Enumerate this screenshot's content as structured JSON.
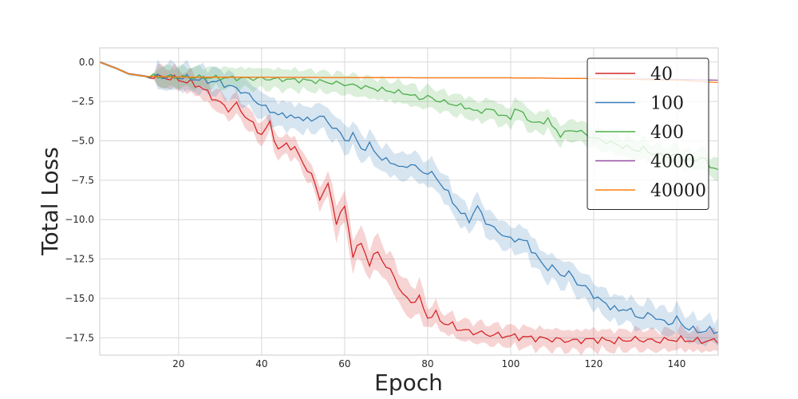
{
  "chart_data": {
    "type": "line",
    "title": "",
    "xlabel": "Epoch",
    "ylabel": "Total Loss",
    "xlim": [
      1,
      150
    ],
    "ylim": [
      -18.6,
      0.9
    ],
    "x_ticks": [
      20,
      40,
      60,
      80,
      100,
      120,
      140
    ],
    "x_tick_labels": [
      "20",
      "40",
      "60",
      "80",
      "100",
      "120",
      "140"
    ],
    "y_ticks": [
      0,
      -2.5,
      -5,
      -7.5,
      -10,
      -12.5,
      -15,
      -17.5
    ],
    "y_tick_labels": [
      "0.0",
      "−2.5",
      "−5.0",
      "−7.5",
      "−10.0",
      "−12.5",
      "−15.0",
      "−17.5"
    ],
    "grid": true,
    "legend_position": "top-right",
    "series": [
      {
        "name": "40",
        "color": "#d62728",
        "shaded_band": true,
        "points": [
          [
            1,
            0
          ],
          [
            5,
            -0.4
          ],
          [
            8,
            -0.75
          ],
          [
            12,
            -0.9
          ],
          [
            16,
            -0.95
          ],
          [
            20,
            -1.1
          ],
          [
            25,
            -1.5
          ],
          [
            28,
            -2.2
          ],
          [
            30,
            -2.6
          ],
          [
            32,
            -3.0
          ],
          [
            34,
            -2.7
          ],
          [
            36,
            -3.4
          ],
          [
            38,
            -4.0
          ],
          [
            40,
            -4.6
          ],
          [
            42,
            -3.9
          ],
          [
            44,
            -5.6
          ],
          [
            46,
            -5.2
          ],
          [
            48,
            -5.5
          ],
          [
            50,
            -6.4
          ],
          [
            52,
            -7.2
          ],
          [
            54,
            -8.6
          ],
          [
            56,
            -7.8
          ],
          [
            58,
            -10.1
          ],
          [
            60,
            -9.2
          ],
          [
            62,
            -12.2
          ],
          [
            64,
            -11.5
          ],
          [
            66,
            -12.8
          ],
          [
            68,
            -12.0
          ],
          [
            70,
            -13.0
          ],
          [
            72,
            -13.6
          ],
          [
            74,
            -14.8
          ],
          [
            76,
            -15.2
          ],
          [
            78,
            -15.0
          ],
          [
            80,
            -16.2
          ],
          [
            82,
            -16.0
          ],
          [
            84,
            -16.6
          ],
          [
            86,
            -16.7
          ],
          [
            88,
            -17.0
          ],
          [
            90,
            -17.1
          ],
          [
            95,
            -17.3
          ],
          [
            100,
            -17.4
          ],
          [
            105,
            -17.5
          ],
          [
            110,
            -17.6
          ],
          [
            115,
            -17.7
          ],
          [
            120,
            -17.6
          ],
          [
            125,
            -17.7
          ],
          [
            130,
            -17.6
          ],
          [
            135,
            -17.7
          ],
          [
            140,
            -17.6
          ],
          [
            145,
            -17.7
          ],
          [
            150,
            -17.7
          ]
        ]
      },
      {
        "name": "100",
        "color": "#377eb8",
        "shaded_band": true,
        "points": [
          [
            1,
            0
          ],
          [
            5,
            -0.4
          ],
          [
            8,
            -0.75
          ],
          [
            12,
            -0.9
          ],
          [
            20,
            -0.95
          ],
          [
            25,
            -1.1
          ],
          [
            30,
            -1.3
          ],
          [
            35,
            -1.8
          ],
          [
            38,
            -2.3
          ],
          [
            40,
            -2.8
          ],
          [
            42,
            -3.0
          ],
          [
            44,
            -3.4
          ],
          [
            46,
            -3.3
          ],
          [
            48,
            -3.6
          ],
          [
            50,
            -3.5
          ],
          [
            52,
            -3.8
          ],
          [
            54,
            -3.3
          ],
          [
            56,
            -3.9
          ],
          [
            58,
            -4.2
          ],
          [
            60,
            -5.0
          ],
          [
            62,
            -4.6
          ],
          [
            64,
            -5.5
          ],
          [
            66,
            -5.3
          ],
          [
            68,
            -5.9
          ],
          [
            70,
            -6.3
          ],
          [
            72,
            -6.4
          ],
          [
            74,
            -6.8
          ],
          [
            76,
            -6.4
          ],
          [
            78,
            -6.9
          ],
          [
            80,
            -7.0
          ],
          [
            82,
            -7.3
          ],
          [
            84,
            -8.0
          ],
          [
            86,
            -8.8
          ],
          [
            88,
            -9.6
          ],
          [
            90,
            -10.0
          ],
          [
            92,
            -9.2
          ],
          [
            94,
            -10.1
          ],
          [
            96,
            -10.6
          ],
          [
            98,
            -10.9
          ],
          [
            100,
            -11.3
          ],
          [
            102,
            -11.2
          ],
          [
            104,
            -11.5
          ],
          [
            106,
            -12.2
          ],
          [
            108,
            -13.0
          ],
          [
            110,
            -13.0
          ],
          [
            112,
            -13.5
          ],
          [
            114,
            -13.4
          ],
          [
            116,
            -14.0
          ],
          [
            118,
            -14.3
          ],
          [
            120,
            -14.8
          ],
          [
            122,
            -15.2
          ],
          [
            124,
            -15.5
          ],
          [
            126,
            -15.8
          ],
          [
            128,
            -15.6
          ],
          [
            130,
            -16.1
          ],
          [
            132,
            -16.2
          ],
          [
            134,
            -16.0
          ],
          [
            136,
            -16.4
          ],
          [
            138,
            -16.6
          ],
          [
            140,
            -16.3
          ],
          [
            142,
            -16.8
          ],
          [
            144,
            -17.0
          ],
          [
            146,
            -17.1
          ],
          [
            148,
            -17.0
          ],
          [
            150,
            -17.1
          ]
        ]
      },
      {
        "name": "400",
        "color": "#4daf4a",
        "shaded_band": true,
        "points": [
          [
            1,
            0
          ],
          [
            5,
            -0.4
          ],
          [
            8,
            -0.75
          ],
          [
            12,
            -0.9
          ],
          [
            20,
            -0.95
          ],
          [
            30,
            -1.0
          ],
          [
            40,
            -1.05
          ],
          [
            50,
            -1.15
          ],
          [
            55,
            -1.25
          ],
          [
            60,
            -1.4
          ],
          [
            65,
            -1.6
          ],
          [
            70,
            -1.8
          ],
          [
            75,
            -2.0
          ],
          [
            78,
            -2.3
          ],
          [
            80,
            -2.2
          ],
          [
            82,
            -2.4
          ],
          [
            85,
            -2.6
          ],
          [
            88,
            -2.8
          ],
          [
            90,
            -2.9
          ],
          [
            92,
            -3.2
          ],
          [
            94,
            -3.0
          ],
          [
            96,
            -3.1
          ],
          [
            98,
            -3.4
          ],
          [
            100,
            -3.6
          ],
          [
            101,
            -2.9
          ],
          [
            103,
            -3.3
          ],
          [
            105,
            -3.8
          ],
          [
            107,
            -3.9
          ],
          [
            109,
            -3.6
          ],
          [
            110,
            -4.1
          ],
          [
            112,
            -4.6
          ],
          [
            114,
            -4.4
          ],
          [
            116,
            -4.3
          ],
          [
            118,
            -4.6
          ],
          [
            120,
            -4.8
          ],
          [
            122,
            -5.0
          ],
          [
            124,
            -5.1
          ],
          [
            126,
            -5.3
          ],
          [
            128,
            -5.4
          ],
          [
            130,
            -5.6
          ],
          [
            132,
            -5.5
          ],
          [
            134,
            -5.8
          ],
          [
            136,
            -5.9
          ],
          [
            138,
            -6.0
          ],
          [
            140,
            -5.9
          ],
          [
            142,
            -6.2
          ],
          [
            144,
            -6.3
          ],
          [
            146,
            -6.0
          ],
          [
            148,
            -6.6
          ],
          [
            150,
            -6.8
          ]
        ]
      },
      {
        "name": "4000",
        "color": "#984ea3",
        "shaded_band": false,
        "points": [
          [
            1,
            0
          ],
          [
            5,
            -0.4
          ],
          [
            8,
            -0.75
          ],
          [
            12,
            -0.9
          ],
          [
            20,
            -0.95
          ],
          [
            40,
            -0.97
          ],
          [
            60,
            -0.98
          ],
          [
            80,
            -1.0
          ],
          [
            100,
            -1.0
          ],
          [
            120,
            -1.05
          ],
          [
            140,
            -1.1
          ],
          [
            150,
            -1.15
          ]
        ]
      },
      {
        "name": "40000",
        "color": "#ff7f0e",
        "shaded_band": false,
        "points": [
          [
            1,
            0
          ],
          [
            5,
            -0.4
          ],
          [
            8,
            -0.75
          ],
          [
            12,
            -0.9
          ],
          [
            20,
            -0.95
          ],
          [
            40,
            -0.97
          ],
          [
            60,
            -0.98
          ],
          [
            80,
            -1.0
          ],
          [
            100,
            -1.0
          ],
          [
            120,
            -1.05
          ],
          [
            140,
            -1.15
          ],
          [
            150,
            -1.3
          ]
        ]
      }
    ]
  }
}
